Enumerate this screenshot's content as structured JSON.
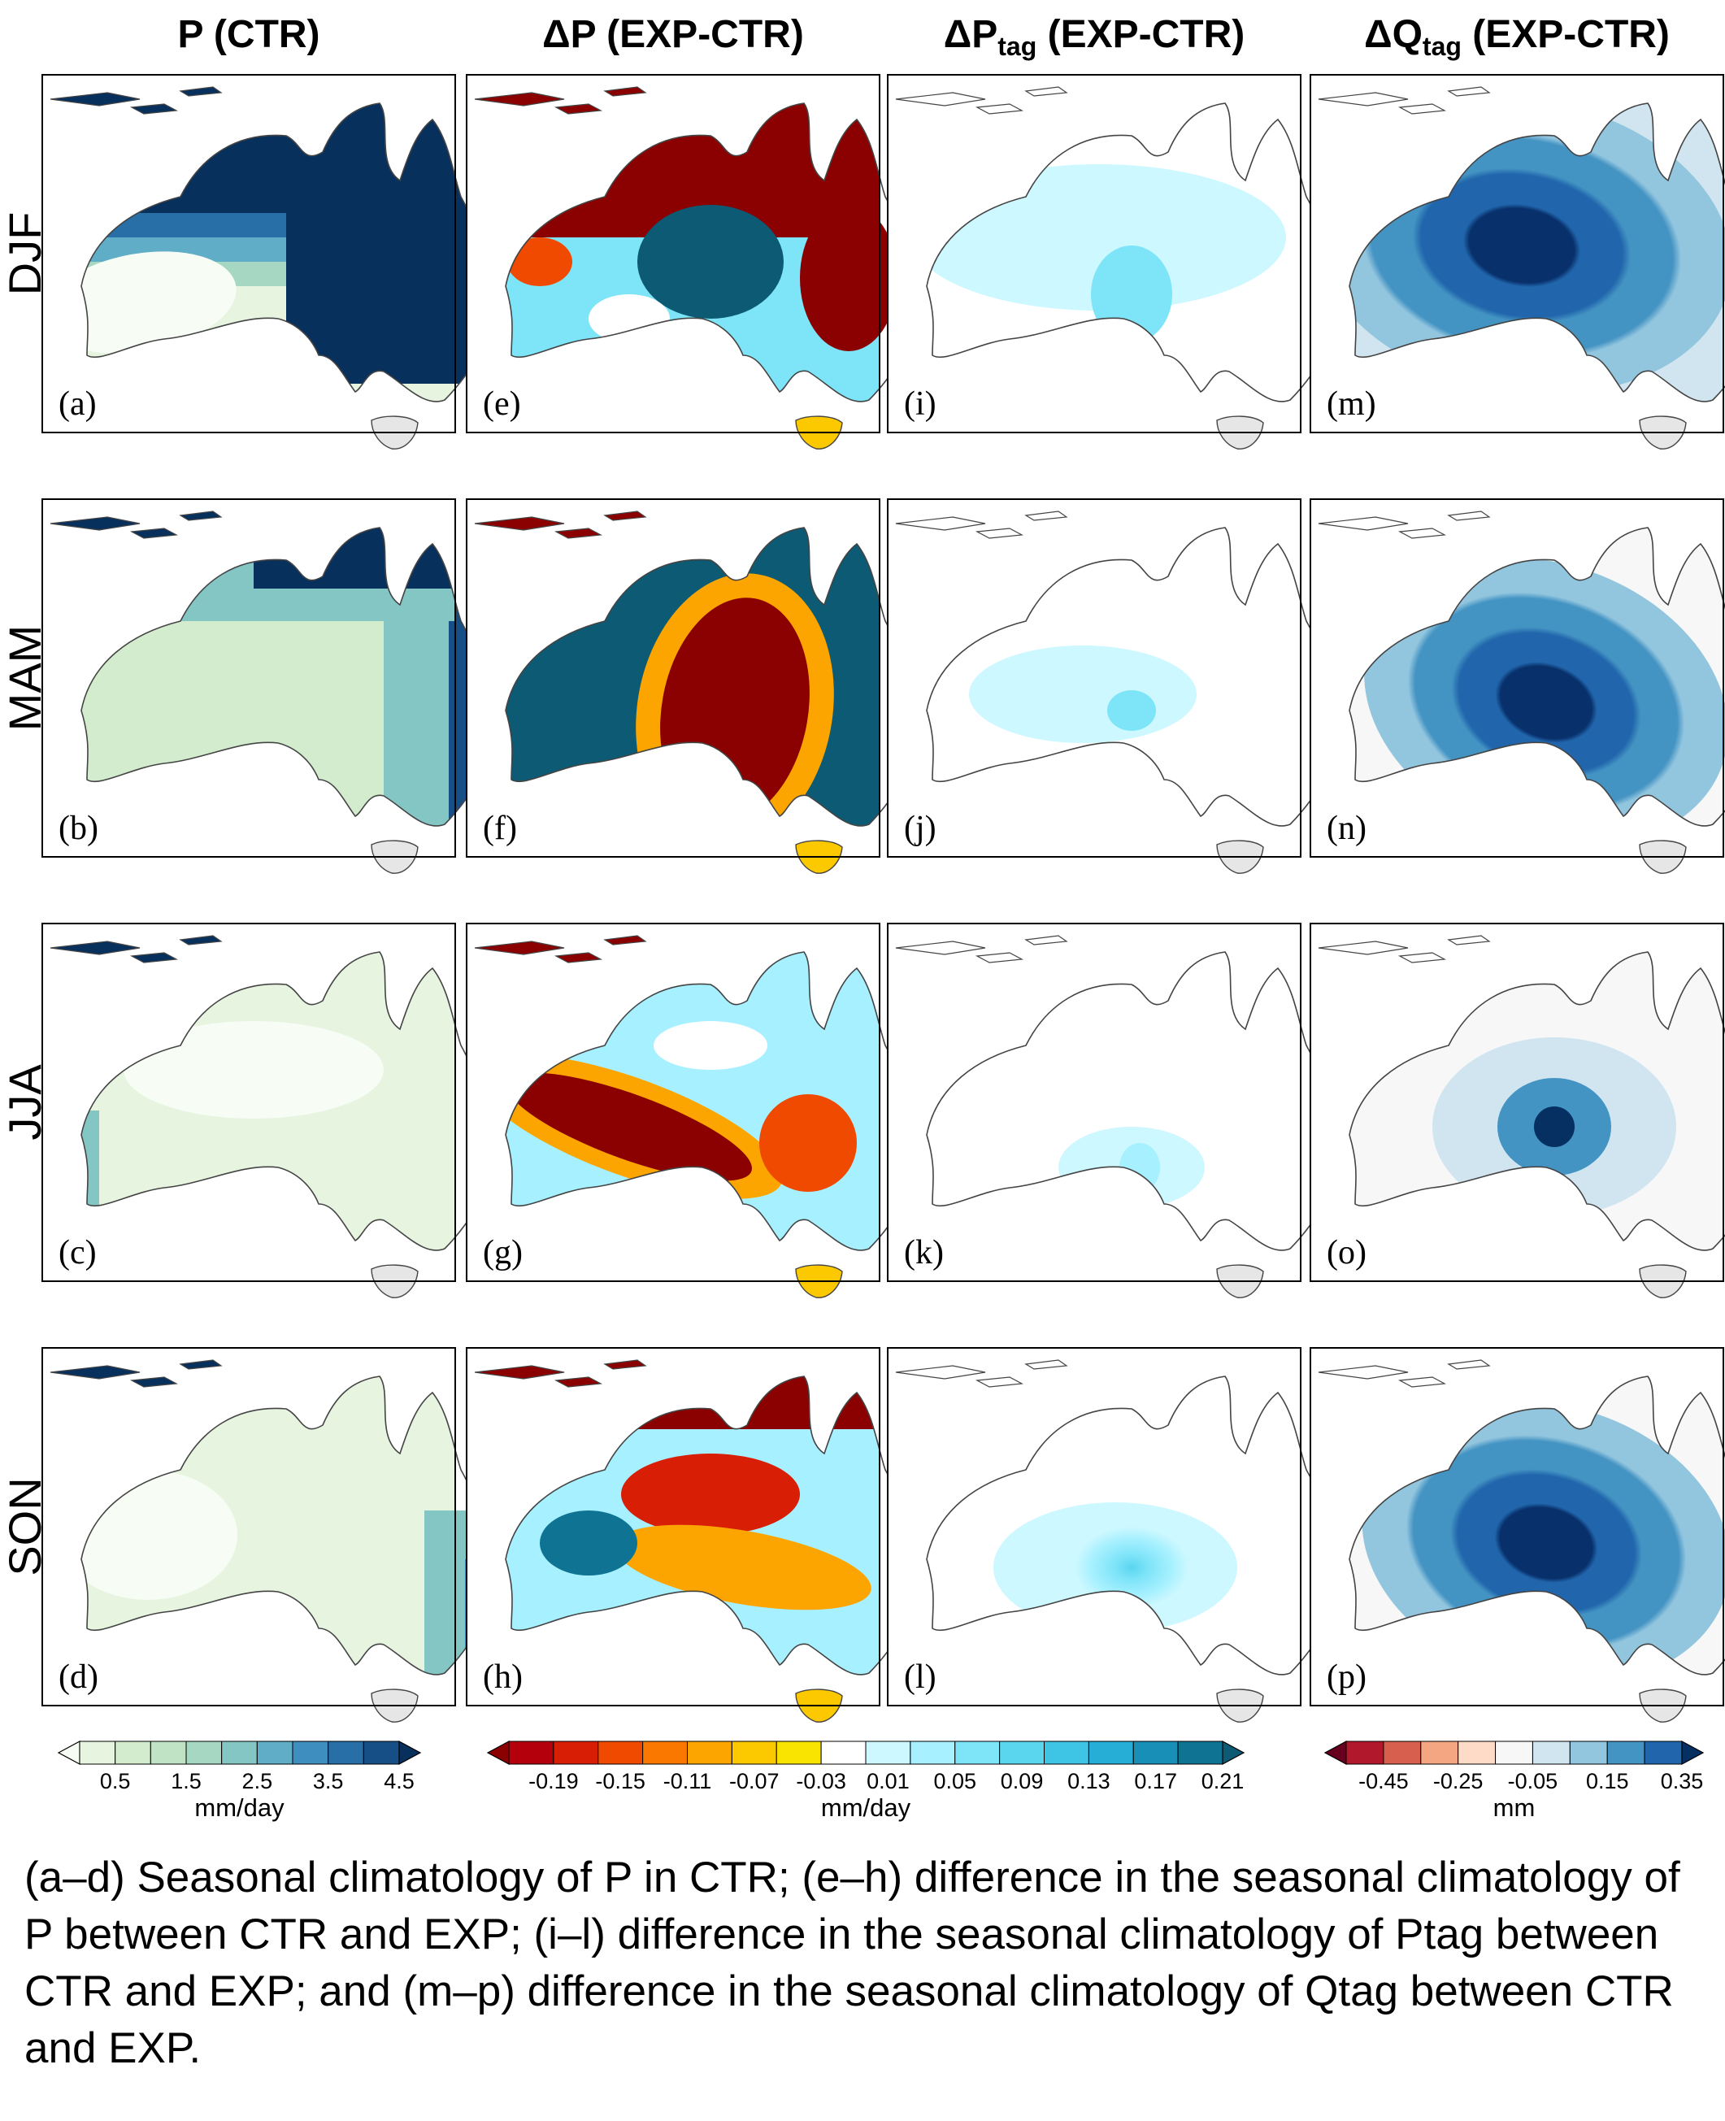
{
  "column_headers": [
    {
      "main": "P (CTR)",
      "sub": "",
      "tail": ""
    },
    {
      "main": "ΔP (EXP-CTR)",
      "sub": "",
      "tail": ""
    },
    {
      "main": "ΔP",
      "sub": "tag",
      "tail": " (EXP-CTR)"
    },
    {
      "main": "ΔQ",
      "sub": "tag",
      "tail": " (EXP-CTR)"
    }
  ],
  "row_labels": [
    "DJF",
    "MAM",
    "JJA",
    "SON"
  ],
  "panel_labels": [
    [
      "(a)",
      "(e)",
      "(i)",
      "(m)"
    ],
    [
      "(b)",
      "(f)",
      "(j)",
      "(n)"
    ],
    [
      "(c)",
      "(g)",
      "(k)",
      "(o)"
    ],
    [
      "(d)",
      "(h)",
      "(l)",
      "(p)"
    ]
  ],
  "colorbars": [
    {
      "unit": "mm/day",
      "ticks": [
        "0.5",
        "1.5",
        "2.5",
        "3.5",
        "4.5"
      ],
      "colors": [
        "#f7fcf5",
        "#e6f4e0",
        "#d3ecce",
        "#bfe3c4",
        "#a5d7c2",
        "#84c6c4",
        "#5fadc7",
        "#3e8fbf",
        "#276fa6",
        "#164f86",
        "#08305c"
      ]
    },
    {
      "unit": "mm/day",
      "ticks": [
        "-0.19",
        "-0.15",
        "-0.11",
        "-0.07",
        "-0.03",
        "0.01",
        "0.05",
        "0.09",
        "0.13",
        "0.17",
        "0.21"
      ],
      "colors": [
        "#8b0000",
        "#b4000c",
        "#d81e05",
        "#ef4a00",
        "#fa7800",
        "#fca500",
        "#fcc800",
        "#f8e400",
        "#ffffff",
        "#cdf8ff",
        "#a6f0ff",
        "#7ee4f8",
        "#5ad6ef",
        "#3ec4e5",
        "#26aed6",
        "#178fb6",
        "#0f7393",
        "#0c5a73"
      ]
    },
    {
      "unit": "mm",
      "ticks": [
        "-0.45",
        "-0.25",
        "-0.05",
        "0.15",
        "0.35"
      ],
      "colors": [
        "#67001f",
        "#b2182b",
        "#d6604d",
        "#f4a582",
        "#fddbc7",
        "#f7f7f7",
        "#d1e5f0",
        "#92c5de",
        "#4393c3",
        "#2166ac",
        "#053061"
      ]
    }
  ],
  "caption": "(a–d) Seasonal climatology of P in CTR; (e–h) difference in the seasonal climatology of P between CTR and EXP; (i–l) difference in the seasonal climatology of Ptag between CTR and EXP; and (m–p) difference in the seasonal climatology of Qtag between CTR and EXP."
}
